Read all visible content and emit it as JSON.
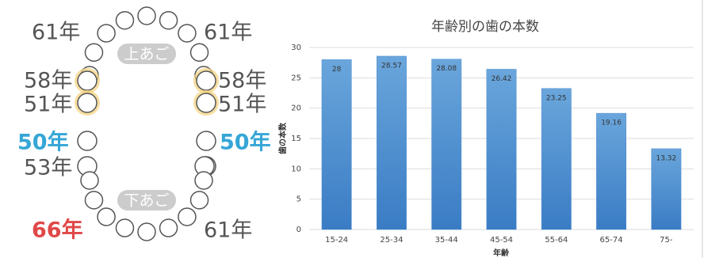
{
  "diagram": {
    "upper_label": "上あご",
    "lower_label": "下あご",
    "labels": [
      {
        "text": "61年"
      },
      {
        "text": "61年"
      },
      {
        "text": "58年"
      },
      {
        "text": "58年"
      },
      {
        "text": "51年"
      },
      {
        "text": "51年"
      },
      {
        "text": "50年"
      },
      {
        "text": "50年"
      },
      {
        "text": "53年"
      },
      {
        "text": "66年"
      },
      {
        "text": "61年"
      }
    ]
  },
  "chart_data": {
    "type": "bar",
    "title": "年齢別の歯の本数",
    "x_label": "年齢",
    "y_label": "歯の本数",
    "categories": [
      "15-24",
      "25-34",
      "35-44",
      "45-54",
      "55-64",
      "65-74",
      "75-"
    ],
    "values": [
      28,
      28.57,
      28.08,
      26.42,
      23.25,
      19.16,
      13.32
    ],
    "color": "#4f8fd0",
    "ylim": [
      0,
      30
    ],
    "yticks": [
      0,
      5,
      10,
      15,
      20,
      25,
      30
    ],
    "grid": true
  }
}
